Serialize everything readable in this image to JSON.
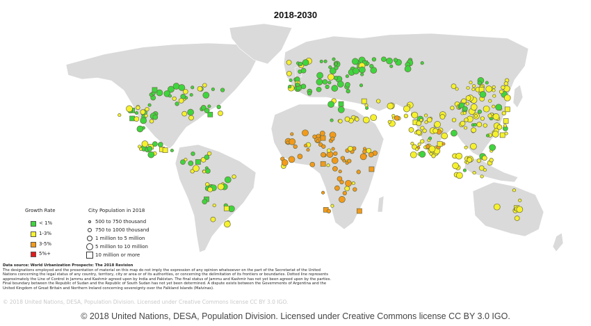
{
  "map": {
    "title": "2018-2030",
    "colors": {
      "land": "#dadada",
      "border": "#ffffff",
      "dot_stroke": "#6b6b45",
      "growth_lt1": "#3ed53e",
      "growth_1_3": "#f6f12d",
      "growth_3_5": "#f39a1a",
      "growth_5plus": "#e31b1b"
    }
  },
  "legend": {
    "growth_heading": "Growth Rate",
    "growth_items": [
      {
        "label": "< 1%",
        "color": "#3ed53e"
      },
      {
        "label": "1-3%",
        "color": "#f6f12d"
      },
      {
        "label": "3-5%",
        "color": "#f39a1a"
      },
      {
        "label": "5%+",
        "color": "#e31b1b"
      }
    ],
    "size_heading": "City Population in 2018",
    "size_items": [
      {
        "label": "500 to 750 thousand"
      },
      {
        "label": "750 to 1000 thousand"
      },
      {
        "label": "1 million to 5 million"
      },
      {
        "label": "5 million to 10 million"
      },
      {
        "label": "10 million or more"
      }
    ]
  },
  "footnote": {
    "source": "Data source: World Urbanization Prospects: The 2018 Revision",
    "text": "The designations employed and the presentation of material on this map do not imply the expression of any opinion whatsoever on the part of the Secretariat of the United Nations concerning the legal status of any country, territory, city or area or of its authorities, or concerning the delimitation of its frontiers or boundaries. Dotted line represents approximately the Line of Control in Jammu and Kashmir agreed upon by India and Pakistan. The final status of Jammu and Kashmir has not yet been agreed upon by the parties. Final boundary between the Republic of Sudan and the Republic of South Sudan has not yet been determined. A dispute exists between the Governments of Argentina and the United Kingdom of Great Britain and Northern Ireland concerning sovereignty over the Falkland Islands (Malvinas)."
  },
  "faint_credit": "© 2018 United Nations, DESA, Population Division. Licensed under Creative Commons license CC BY 3.0 IGO.",
  "credit": "© 2018 United Nations, DESA, Population Division. Licensed under Creative Commons license CC BY 3.0 IGO."
}
